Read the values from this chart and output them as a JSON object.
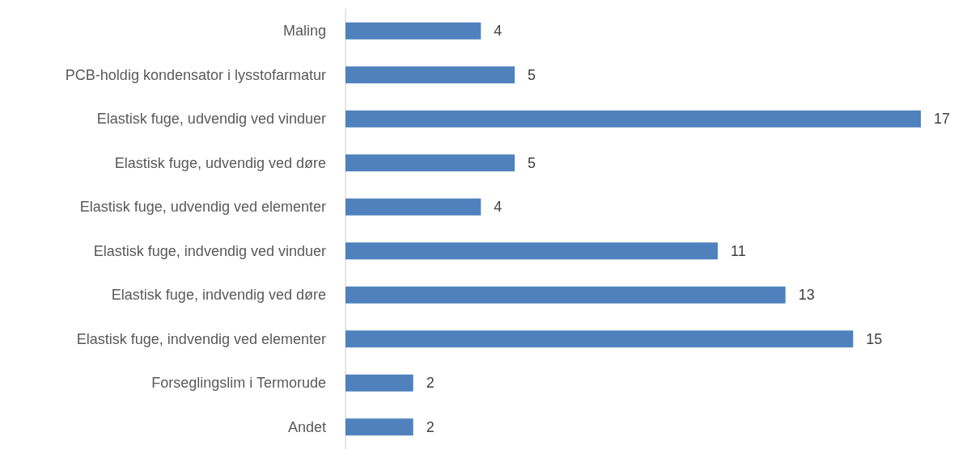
{
  "chart_data": {
    "type": "bar",
    "orientation": "horizontal",
    "categories": [
      "Maling",
      "PCB-holdig kondensator i lysstofarmatur",
      "Elastisk fuge, udvendig ved vinduer",
      "Elastisk fuge, udvendig ved døre",
      "Elastisk fuge, udvendig ved elementer",
      "Elastisk fuge, indvendig ved vinduer",
      "Elastisk fuge, indvendig ved døre",
      "Elastisk fuge, indvendig ved elementer",
      "Forseglingslim i Termorude",
      "Andet"
    ],
    "values": [
      4,
      5,
      17,
      5,
      4,
      11,
      13,
      15,
      2,
      2
    ],
    "color": "#4f81bd",
    "data_labels": true
  }
}
